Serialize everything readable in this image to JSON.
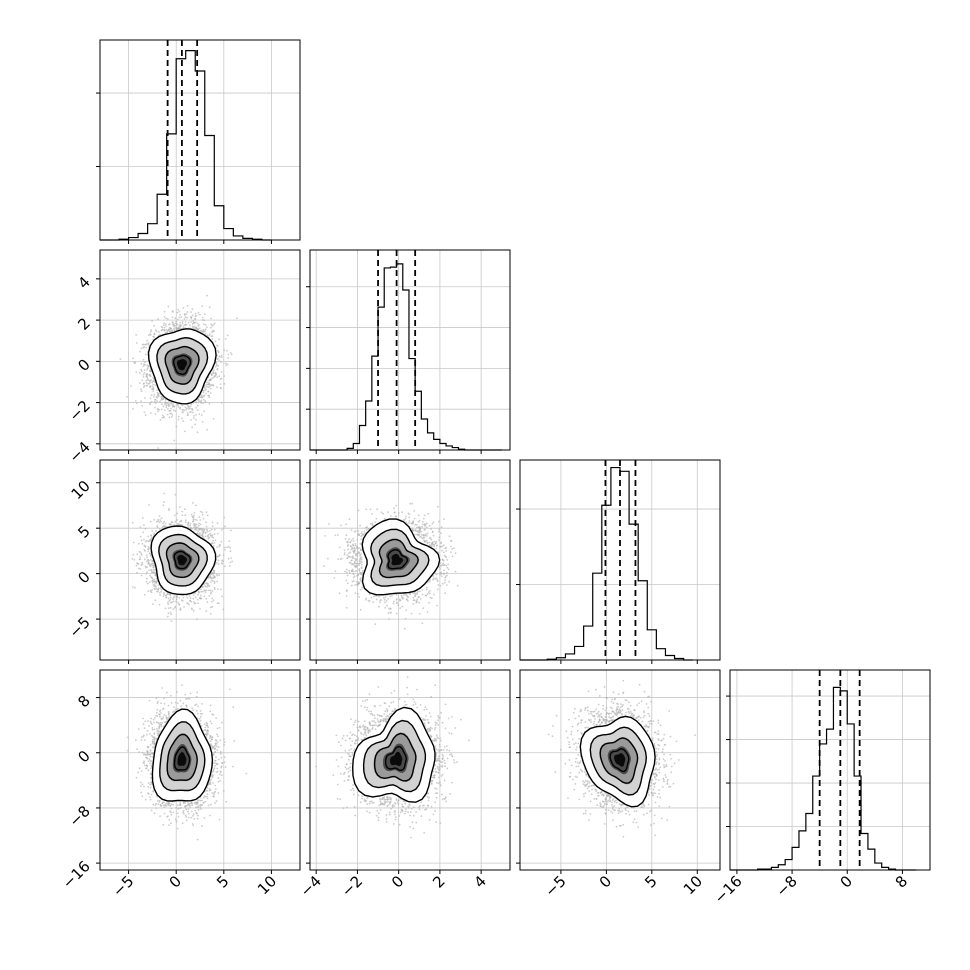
{
  "chart_data": {
    "type": "corner",
    "grid": true,
    "dims": [
      {
        "range": [
          -8,
          13
        ],
        "ticks": [
          -5,
          0,
          5,
          10
        ],
        "tick_labels": [
          "−5",
          "0",
          "5",
          "10"
        ],
        "quantiles": [
          -0.9,
          0.6,
          2.2
        ],
        "median": 0.6,
        "sigma": 1.6
      },
      {
        "range": [
          -4.3,
          5.4
        ],
        "ticks": [
          -4,
          -2,
          0,
          2,
          4
        ],
        "tick_labels": [
          "−4",
          "−2",
          "0",
          "2",
          "4"
        ],
        "quantiles": [
          -1.0,
          -0.1,
          0.8
        ],
        "median": -0.1,
        "sigma": 0.95
      },
      {
        "range": [
          -9.5,
          12.5
        ],
        "ticks": [
          -5,
          0,
          5,
          10
        ],
        "tick_labels": [
          "−5",
          "0",
          "5",
          "10"
        ],
        "quantiles": [
          -0.1,
          1.5,
          3.2
        ],
        "median": 1.5,
        "sigma": 1.9
      },
      {
        "range": [
          -17,
          12
        ],
        "ticks": [
          -16,
          -8,
          0,
          8
        ],
        "tick_labels": [
          "−16",
          "−8",
          "0",
          "8"
        ],
        "quantiles": [
          -4.0,
          -1.0,
          1.8
        ],
        "median": -1.0,
        "sigma": 3.2
      }
    ],
    "histograms": [
      {
        "dim": 0,
        "edges": [
          -8,
          -7,
          -6,
          -5,
          -4,
          -3,
          -2,
          -1,
          0,
          1,
          2,
          3,
          4,
          5,
          6,
          7,
          8,
          9,
          10
        ],
        "counts": [
          0,
          0,
          1,
          3,
          8,
          20,
          56,
          130,
          222,
          232,
          207,
          128,
          42,
          14,
          5,
          2,
          1,
          0
        ],
        "ylim": [
          0,
          245
        ],
        "yticks": [
          90,
          180
        ]
      },
      {
        "dim": 1,
        "edges": [
          -4.3,
          -4.0,
          -3.7,
          -3.4,
          -3.1,
          -2.8,
          -2.5,
          -2.2,
          -1.9,
          -1.6,
          -1.3,
          -1.0,
          -0.7,
          -0.4,
          -0.1,
          0.2,
          0.5,
          0.8,
          1.1,
          1.4,
          1.7,
          2.0,
          2.3,
          2.6,
          2.9,
          3.2,
          3.5,
          3.8,
          4.1,
          4.4,
          4.7,
          5.0
        ],
        "counts": [
          0,
          0,
          0,
          0,
          0,
          0,
          2,
          8,
          30,
          60,
          115,
          175,
          223,
          224,
          228,
          196,
          112,
          72,
          38,
          21,
          13,
          8,
          5,
          3,
          1,
          0,
          0,
          0,
          0,
          0,
          0
        ],
        "ylim": [
          0,
          245
        ],
        "yticks": [
          50,
          100,
          150,
          200
        ]
      },
      {
        "dim": 2,
        "edges": [
          -9.5,
          -8.5,
          -7.5,
          -6.5,
          -5.5,
          -4.5,
          -3.5,
          -2.5,
          -1.5,
          -0.5,
          0.5,
          1.5,
          2.5,
          3.5,
          4.5,
          5.5,
          6.5,
          7.5,
          8.5,
          9.5
        ],
        "counts": [
          0,
          0,
          0,
          1,
          3,
          8,
          18,
          45,
          115,
          205,
          255,
          250,
          180,
          105,
          40,
          15,
          6,
          2,
          0
        ],
        "ylim": [
          0,
          265
        ],
        "yticks": [
          100,
          200
        ]
      },
      {
        "dim": 3,
        "edges": [
          -17,
          -16,
          -15,
          -14,
          -13,
          -12,
          -11,
          -10,
          -9,
          -8,
          -7,
          -6,
          -5,
          -4,
          -3,
          -2,
          -1,
          0,
          1,
          2,
          3,
          4,
          5,
          6,
          7,
          8,
          9,
          10
        ],
        "counts": [
          0,
          0,
          0,
          0,
          1,
          1,
          3,
          6,
          12,
          26,
          45,
          65,
          108,
          145,
          162,
          210,
          206,
          168,
          108,
          42,
          24,
          8,
          3,
          1,
          0,
          0,
          0
        ],
        "ylim": [
          0,
          230
        ],
        "yticks": [
          50,
          100,
          150,
          200
        ]
      }
    ],
    "pairs": [
      {
        "x": 0,
        "y": 1,
        "center": [
          0.6,
          -0.15
        ],
        "spread": [
          1.6,
          0.95
        ],
        "tilt": 0.05,
        "noise": 0.09
      },
      {
        "x": 0,
        "y": 2,
        "center": [
          0.6,
          1.5
        ],
        "spread": [
          1.6,
          1.9
        ],
        "tilt": 0.0,
        "noise": 0.08
      },
      {
        "x": 1,
        "y": 2,
        "center": [
          -0.1,
          1.5
        ],
        "spread": [
          0.95,
          1.9
        ],
        "tilt": 0.0,
        "noise": 0.14
      },
      {
        "x": 0,
        "y": 3,
        "center": [
          0.6,
          -1.0
        ],
        "spread": [
          1.6,
          3.2
        ],
        "tilt": 0.0,
        "noise": 0.08
      },
      {
        "x": 1,
        "y": 3,
        "center": [
          -0.1,
          -1.0
        ],
        "spread": [
          0.95,
          3.2
        ],
        "tilt": 0.0,
        "noise": 0.15
      },
      {
        "x": 2,
        "y": 3,
        "center": [
          1.5,
          -1.0
        ],
        "spread": [
          1.9,
          3.2
        ],
        "tilt": -0.1,
        "noise": 0.1
      }
    ],
    "contour_levels_sigma": [
      0.5,
      1.0,
      1.5,
      2.0
    ],
    "colors": {
      "hist": "#000000",
      "scatter": "#b0b0b0",
      "contour": "#000000",
      "grid": "#c8c8c8",
      "frame": "#000000"
    }
  }
}
